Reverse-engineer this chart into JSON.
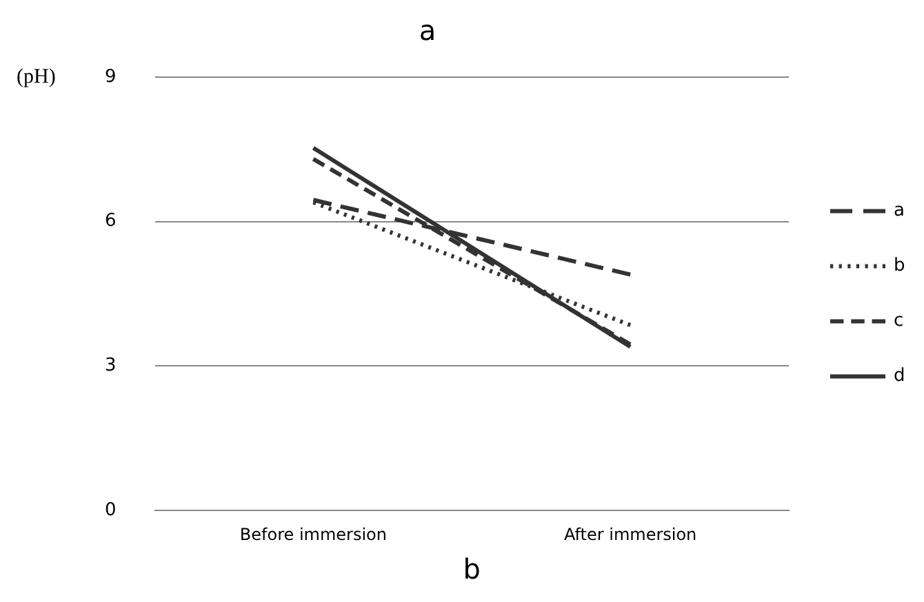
{
  "chart_data": {
    "type": "line",
    "title": "a",
    "ylabel": "(pH)",
    "annotations": [
      "b"
    ],
    "categories": [
      "Before immersion",
      "After immersion"
    ],
    "series": [
      {
        "name": "a",
        "color": "#333333",
        "line_style": "dashed",
        "values": [
          6.45,
          4.9
        ]
      },
      {
        "name": "b",
        "color": "#333333",
        "line_style": "dotted",
        "values": [
          6.4,
          3.85
        ]
      },
      {
        "name": "c",
        "color": "#333333",
        "line_style": "dashed",
        "values": [
          7.3,
          3.45
        ]
      },
      {
        "name": "d",
        "color": "#333333",
        "line_style": "solid",
        "values": [
          7.53,
          3.4
        ]
      }
    ],
    "ylim": [
      0,
      9
    ],
    "yticks": [
      0,
      3,
      6,
      9
    ],
    "grid": "y",
    "legend": "right",
    "marker": "none"
  }
}
